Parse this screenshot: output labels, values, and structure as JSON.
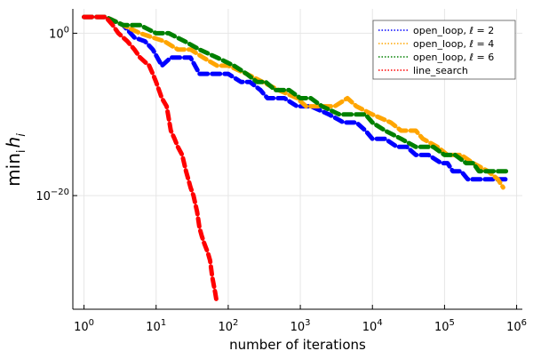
{
  "chart_data": {
    "type": "line",
    "title": "",
    "xlabel": "number of iterations",
    "ylabel": "min_i h_i",
    "ylabel_parts": {
      "main": "min",
      "sub": "i",
      "var": "h",
      "var_sub": "i"
    },
    "x_scale": "log10",
    "y_scale": "log10",
    "xlim": [
      0.7,
      1200000
    ],
    "ylim": [
      1e-34,
      1000.0
    ],
    "grid": true,
    "legend_position": "top-right",
    "x_ticks": [
      {
        "value": 1,
        "base": "10",
        "exp": "0"
      },
      {
        "value": 10,
        "base": "10",
        "exp": "1"
      },
      {
        "value": 100,
        "base": "10",
        "exp": "2"
      },
      {
        "value": 1000,
        "base": "10",
        "exp": "3"
      },
      {
        "value": 10000,
        "base": "10",
        "exp": "4"
      },
      {
        "value": 100000,
        "base": "10",
        "exp": "5"
      },
      {
        "value": 1000000,
        "base": "10",
        "exp": "6"
      }
    ],
    "y_ticks": [
      {
        "value": 1,
        "base": "10",
        "exp": "0"
      },
      {
        "value": 1e-20,
        "base": "10",
        "exp": "−20"
      }
    ],
    "series": [
      {
        "name": "open_loop, ℓ = 2",
        "color": "#0000ff",
        "points": [
          [
            1,
            100.0
          ],
          [
            2,
            100.0
          ],
          [
            3.5,
            10.0
          ],
          [
            5,
            0.3
          ],
          [
            7,
            0.1
          ],
          [
            9,
            0.01
          ],
          [
            12,
            0.0001
          ],
          [
            16,
            0.001
          ],
          [
            30,
            0.001
          ],
          [
            40,
            1e-05
          ],
          [
            60,
            1e-05
          ],
          [
            100,
            1e-05
          ],
          [
            150,
            1e-06
          ],
          [
            200,
            1e-06
          ],
          [
            280,
            1e-07
          ],
          [
            350,
            1e-08
          ],
          [
            600,
            1e-08
          ],
          [
            900,
            1e-09
          ],
          [
            1400,
            1e-09
          ],
          [
            2500,
            1e-10
          ],
          [
            4000,
            1e-11
          ],
          [
            6000,
            1e-11
          ],
          [
            8000,
            1e-12
          ],
          [
            10000,
            1e-13
          ],
          [
            15000,
            1e-13
          ],
          [
            22000,
            1e-14
          ],
          [
            30000,
            1e-14
          ],
          [
            40000,
            1e-15
          ],
          [
            60000,
            1e-15
          ],
          [
            90000,
            1e-16
          ],
          [
            110000,
            1e-16
          ],
          [
            130000,
            1e-17
          ],
          [
            170000,
            1e-17
          ],
          [
            210000,
            1e-18
          ],
          [
            300000,
            1e-18
          ],
          [
            450000,
            1e-18
          ],
          [
            550000,
            1e-18
          ],
          [
            700000,
            1e-18
          ]
        ]
      },
      {
        "name": "open_loop, ℓ = 4",
        "color": "#ffa500",
        "points": [
          [
            1,
            100.0
          ],
          [
            2,
            100.0
          ],
          [
            3.5,
            10.0
          ],
          [
            6,
            1.0
          ],
          [
            9,
            0.3
          ],
          [
            13,
            0.1
          ],
          [
            20,
            0.01
          ],
          [
            30,
            0.01
          ],
          [
            45,
            0.001
          ],
          [
            70,
            0.0001
          ],
          [
            100,
            0.0001
          ],
          [
            180,
            1e-05
          ],
          [
            300,
            1e-06
          ],
          [
            500,
            1e-07
          ],
          [
            900,
            1e-08
          ],
          [
            1200,
            1e-09
          ],
          [
            3000,
            1e-09
          ],
          [
            4500,
            1e-08
          ],
          [
            6000,
            1e-09
          ],
          [
            10000,
            1e-10
          ],
          [
            18000,
            1e-11
          ],
          [
            25000,
            1e-12
          ],
          [
            40000,
            1e-12
          ],
          [
            50000,
            1e-13
          ],
          [
            80000,
            1e-14
          ],
          [
            110000,
            1e-15
          ],
          [
            170000,
            1e-15
          ],
          [
            250000,
            1e-16
          ],
          [
            400000,
            1e-17
          ],
          [
            550000,
            1e-18
          ],
          [
            650000,
            1e-19
          ]
        ]
      },
      {
        "name": "open_loop, ℓ = 6",
        "color": "#008000",
        "points": [
          [
            1,
            100.0
          ],
          [
            2,
            100.0
          ],
          [
            3.5,
            10.0
          ],
          [
            6,
            10.0
          ],
          [
            10,
            1.0
          ],
          [
            15,
            1.0
          ],
          [
            25,
            0.1
          ],
          [
            40,
            0.01
          ],
          [
            70,
            0.001
          ],
          [
            120,
            0.0001
          ],
          [
            180,
            1e-05
          ],
          [
            250,
            1e-06
          ],
          [
            330,
            1e-06
          ],
          [
            450,
            1e-07
          ],
          [
            700,
            1e-07
          ],
          [
            1000,
            1e-08
          ],
          [
            1400,
            1e-08
          ],
          [
            2000,
            1e-09
          ],
          [
            3500,
            1e-10
          ],
          [
            8000,
            1e-10
          ],
          [
            10000,
            1e-11
          ],
          [
            15000,
            1e-12
          ],
          [
            25000,
            1e-13
          ],
          [
            40000,
            1e-14
          ],
          [
            70000,
            1e-14
          ],
          [
            100000,
            1e-15
          ],
          [
            140000,
            1e-15
          ],
          [
            200000,
            1e-16
          ],
          [
            250000,
            1e-16
          ],
          [
            300000,
            1e-17
          ],
          [
            500000,
            1e-17
          ],
          [
            800000,
            1e-17
          ]
        ]
      },
      {
        "name": "line_search",
        "color": "#ff0000",
        "points": [
          [
            1,
            100.0
          ],
          [
            2,
            100.0
          ],
          [
            2.5,
            10.0
          ],
          [
            3,
            1.0
          ],
          [
            4,
            0.1
          ],
          [
            5,
            0.01
          ],
          [
            6,
            0.001
          ],
          [
            8,
            0.0001
          ],
          [
            9,
            1e-05
          ],
          [
            10,
            1e-06
          ],
          [
            12,
            1e-08
          ],
          [
            14,
            1e-09
          ],
          [
            16,
            1e-12
          ],
          [
            18,
            1e-13
          ],
          [
            20,
            1e-14
          ],
          [
            23,
            1e-15
          ],
          [
            26,
            1e-17
          ],
          [
            28,
            1e-18
          ],
          [
            30,
            1e-19
          ],
          [
            33,
            1e-20
          ],
          [
            37,
            1e-22
          ],
          [
            40,
            1e-24
          ],
          [
            43,
            1e-25
          ],
          [
            47,
            1e-26
          ],
          [
            52,
            1e-27
          ],
          [
            56,
            1e-28
          ],
          [
            60,
            1e-30
          ],
          [
            63,
            1e-31
          ],
          [
            66,
            1e-32
          ],
          [
            69,
            1e-33
          ]
        ]
      }
    ]
  }
}
